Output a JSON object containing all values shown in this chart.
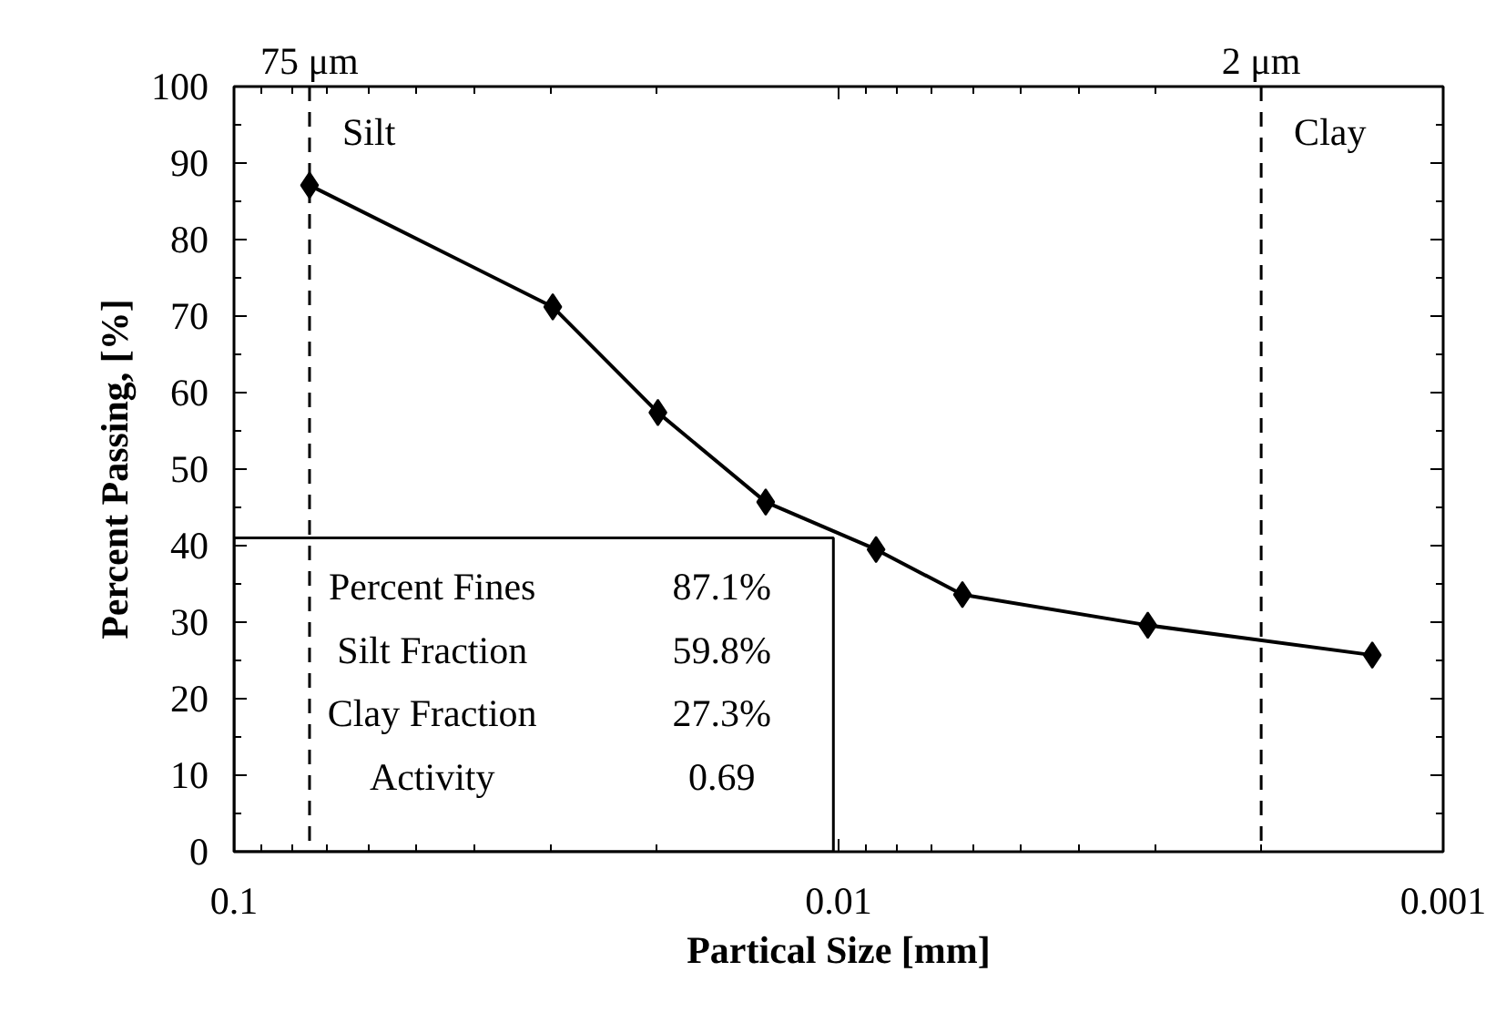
{
  "chart_data": {
    "type": "line",
    "xlabel": "Partical Size [mm]",
    "ylabel": "Percent Passing, [%]",
    "log": "x",
    "x": [
      0.075,
      0.0297,
      0.0199,
      0.0132,
      0.00867,
      0.00624,
      0.00308,
      0.00131
    ],
    "series": [
      {
        "color": "#000000",
        "values": [
          87.1,
          71.2,
          57.4,
          45.7,
          39.5,
          33.6,
          29.6,
          25.7
        ]
      }
    ],
    "marker": "diamond",
    "line_style": "solid",
    "xlim": [
      0.1,
      0.001
    ],
    "xticks": [
      0.1,
      0.01,
      0.001
    ],
    "ylim": [
      0,
      100
    ],
    "yticks": [
      0,
      10,
      20,
      30,
      40,
      50,
      60,
      70,
      80,
      90,
      100
    ],
    "grid": false,
    "ref_lines": [
      {
        "axis": "x",
        "value": 0.075,
        "label": "75 μm",
        "color": "#000000",
        "line_style": "dashed"
      },
      {
        "axis": "x",
        "value": 0.002,
        "label": "2 μm",
        "color": "#000000",
        "line_style": "dashed"
      }
    ],
    "annotations": [
      "Silt",
      "Clay",
      "Percent Fines 87.1%",
      "Silt Fraction 59.8%",
      "Clay Fraction 27.3%",
      "Activity 0.69"
    ]
  }
}
